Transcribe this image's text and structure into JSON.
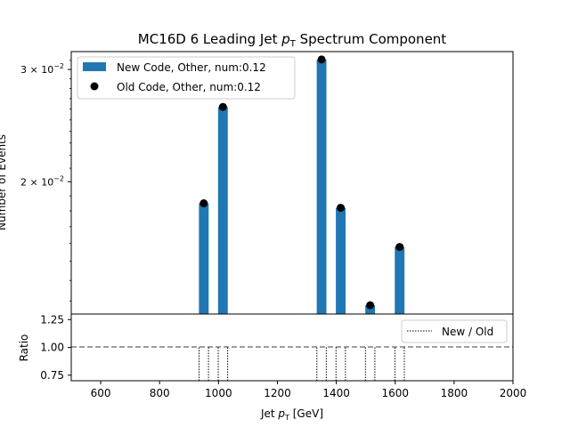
{
  "chart_data": [
    {
      "type": "bar",
      "panel": "main",
      "title_prefix": "MC16D 6 Leading Jet ",
      "title_var": "p",
      "title_sub": "T",
      "title_suffix": " Spectrum Component",
      "ylabel": "Number of Events",
      "yscale": "log",
      "ylim": [
        0.0124,
        0.032
      ],
      "xlim": [
        500,
        2000
      ],
      "ytick_labels": [
        {
          "mant": "3 × 10",
          "exp": "−2",
          "value": 0.03
        },
        {
          "mant": "2 × 10",
          "exp": "−2",
          "value": 0.02
        }
      ],
      "bar_width": 33,
      "color_new": "#1f77b4",
      "color_old": "#000000",
      "legend_position": "upper left",
      "series": [
        {
          "name": "New Code, Other, num:0.12",
          "kind": "bar",
          "x": [
            950,
            1015,
            1350,
            1415,
            1515,
            1615
          ],
          "values": [
            0.0185,
            0.0262,
            0.0311,
            0.0182,
            0.0128,
            0.0158
          ]
        },
        {
          "name": "Old Code, Other, num:0.12",
          "kind": "scatter",
          "x": [
            950,
            1015,
            1350,
            1415,
            1515,
            1615
          ],
          "values": [
            0.0185,
            0.0262,
            0.0311,
            0.0182,
            0.0128,
            0.0158
          ]
        }
      ]
    },
    {
      "type": "line",
      "panel": "ratio",
      "ylabel": "Ratio",
      "xlabel_prefix": "Jet ",
      "xlabel_var": "p",
      "xlabel_sub": "T",
      "xlabel_suffix": " [GeV]",
      "xlim": [
        500,
        2000
      ],
      "ylim": [
        0.7,
        1.3
      ],
      "x_ticks": [
        600,
        800,
        1000,
        1200,
        1400,
        1600,
        1800,
        2000
      ],
      "y_ticks": [
        0.75,
        1.0,
        1.25
      ],
      "y_tick_labels": [
        "0.75",
        "1.00",
        "1.25"
      ],
      "reference_line": 1.0,
      "legend_position": "upper right",
      "series": [
        {
          "name": "New / Old",
          "bin_edges": [
            934,
            966,
            999,
            1031,
            1334,
            1366,
            1399,
            1431,
            1499,
            1531,
            1599,
            1631
          ],
          "values": [
            1.0,
            1.0,
            1.0,
            1.0,
            1.0,
            1.0,
            1.0,
            1.0,
            1.0,
            1.0,
            1.0,
            1.0
          ]
        }
      ]
    }
  ]
}
